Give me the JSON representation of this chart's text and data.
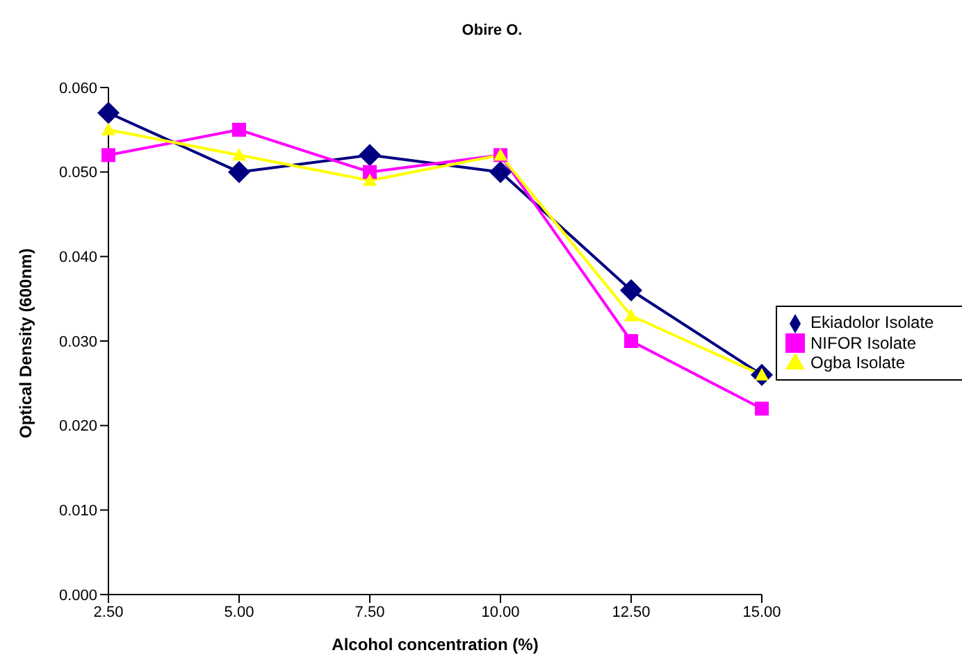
{
  "chart_data": {
    "type": "line",
    "title": "Obire O.",
    "xlabel": "Alcohol concentration (%)",
    "ylabel": "Optical Density (600nm)",
    "categories": [
      "2.50",
      "5.00",
      "7.50",
      "10.00",
      "12.50",
      "15.00"
    ],
    "series": [
      {
        "name": "Ekiadolor Isolate",
        "color": "#000080",
        "marker": "diamond",
        "values": [
          0.057,
          0.05,
          0.052,
          0.05,
          0.036,
          0.026
        ]
      },
      {
        "name": "NIFOR Isolate",
        "color": "#ff00ff",
        "marker": "square",
        "values": [
          0.052,
          0.055,
          0.05,
          0.052,
          0.03,
          0.022
        ]
      },
      {
        "name": "Ogba Isolate",
        "color": "#ffff00",
        "marker": "triangle",
        "values": [
          0.055,
          0.052,
          0.049,
          0.052,
          0.033,
          0.026
        ]
      }
    ],
    "ylim": [
      0,
      0.06
    ],
    "yticks": [
      {
        "value": 0,
        "label": "0.000"
      },
      {
        "value": 0.01,
        "label": "0.010"
      },
      {
        "value": 0.02,
        "label": "0.020"
      },
      {
        "value": 0.03,
        "label": "0.030"
      },
      {
        "value": 0.04,
        "label": "0.040"
      },
      {
        "value": 0.05,
        "label": "0.050"
      },
      {
        "value": 0.06,
        "label": "0.060"
      }
    ],
    "grid": false,
    "legend": "right"
  }
}
